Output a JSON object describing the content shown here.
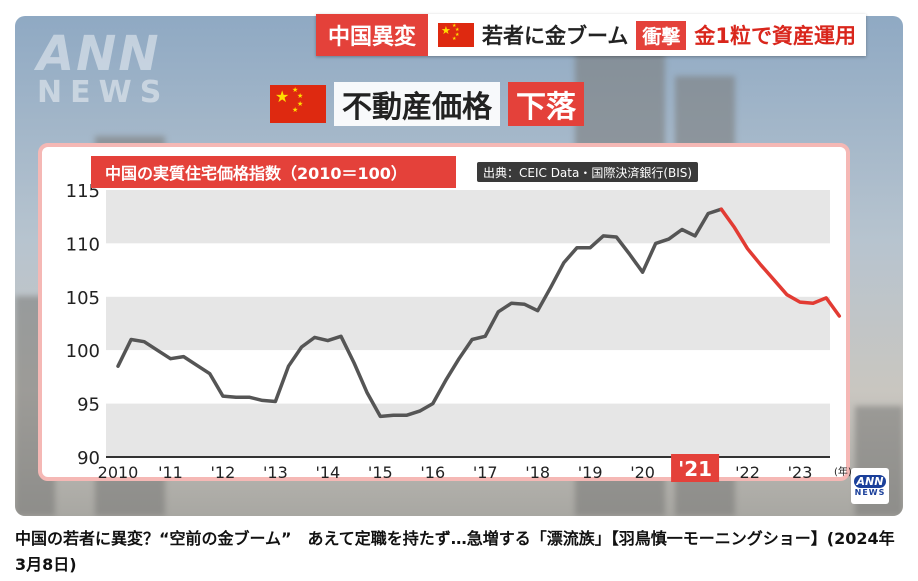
{
  "banner": {
    "label": "中国異変",
    "headline": "若者に金ブーム",
    "tag": "衝撃",
    "headline2": "金1粒で資産運用"
  },
  "subtitle": {
    "main": "不動産価格",
    "tag": "下落"
  },
  "watermark": {
    "line1": "ANN",
    "line2": "NEWS"
  },
  "logo": {
    "line1": "ANN",
    "line2": "NEWS"
  },
  "caption": "中国の若者に異変？“空前の金ブーム”　あえて定職を持たず…急増する「漂流族」【羽鳥慎一モーニングショー】(2024年3月8日)",
  "chart_data": {
    "type": "line",
    "title": "中国の実質住宅価格指数（2010＝100）",
    "source": "出典：CEIC Data・国際決済銀行(BIS)",
    "unit": "(年)",
    "ylim": [
      90,
      115
    ],
    "yticks": [
      115,
      110,
      105,
      100,
      95,
      90
    ],
    "xticks": [
      {
        "label": "2010",
        "x": 2010
      },
      {
        "label": "'11",
        "x": 2011
      },
      {
        "label": "'12",
        "x": 2012
      },
      {
        "label": "'13",
        "x": 2013
      },
      {
        "label": "'14",
        "x": 2014
      },
      {
        "label": "'15",
        "x": 2015
      },
      {
        "label": "'16",
        "x": 2016
      },
      {
        "label": "'17",
        "x": 2017
      },
      {
        "label": "'18",
        "x": 2018
      },
      {
        "label": "'19",
        "x": 2019
      },
      {
        "label": "'20",
        "x": 2020
      },
      {
        "label": "'21",
        "x": 2021,
        "highlight": true
      },
      {
        "label": "'22",
        "x": 2022
      },
      {
        "label": "'23",
        "x": 2023
      }
    ],
    "grid": "alternating bands",
    "colors": {
      "history": "#555555",
      "decline": "#e23b33",
      "highlight": "#e4413a"
    },
    "series": [
      {
        "segment": "history",
        "x": [
          2010.0,
          2010.25,
          2010.5,
          2010.75,
          2011.0,
          2011.25,
          2011.5,
          2011.75,
          2012.0,
          2012.25,
          2012.5,
          2012.75,
          2013.0,
          2013.25,
          2013.5,
          2013.75,
          2014.0,
          2014.25,
          2014.5,
          2014.75,
          2015.0,
          2015.25,
          2015.5,
          2015.75,
          2016.0,
          2016.25,
          2016.5,
          2016.75,
          2017.0,
          2017.25,
          2017.5,
          2017.75,
          2018.0,
          2018.25,
          2018.5,
          2018.75,
          2019.0,
          2019.25,
          2019.5,
          2019.75,
          2020.0,
          2020.25,
          2020.5,
          2020.75,
          2021.0,
          2021.25,
          2021.5
        ],
        "y": [
          98.5,
          101.0,
          100.8,
          100.0,
          99.2,
          99.4,
          98.6,
          97.8,
          95.7,
          95.6,
          95.6,
          95.3,
          95.2,
          98.5,
          100.3,
          101.2,
          100.9,
          101.3,
          98.8,
          96.0,
          93.8,
          93.9,
          93.9,
          94.3,
          95.0,
          97.2,
          99.2,
          101.0,
          101.3,
          103.6,
          104.4,
          104.3,
          103.7,
          105.9,
          108.2,
          109.6,
          109.6,
          110.7,
          110.6,
          109.0,
          107.3,
          110.0,
          110.4,
          111.3,
          110.7,
          112.8,
          113.2
        ]
      },
      {
        "segment": "decline",
        "x": [
          2021.5,
          2021.75,
          2022.0,
          2022.25,
          2022.5,
          2022.75,
          2023.0,
          2023.25,
          2023.5,
          2023.75
        ],
        "y": [
          113.2,
          111.5,
          109.5,
          108.0,
          106.6,
          105.2,
          104.5,
          104.4,
          104.9,
          103.2
        ]
      }
    ]
  }
}
